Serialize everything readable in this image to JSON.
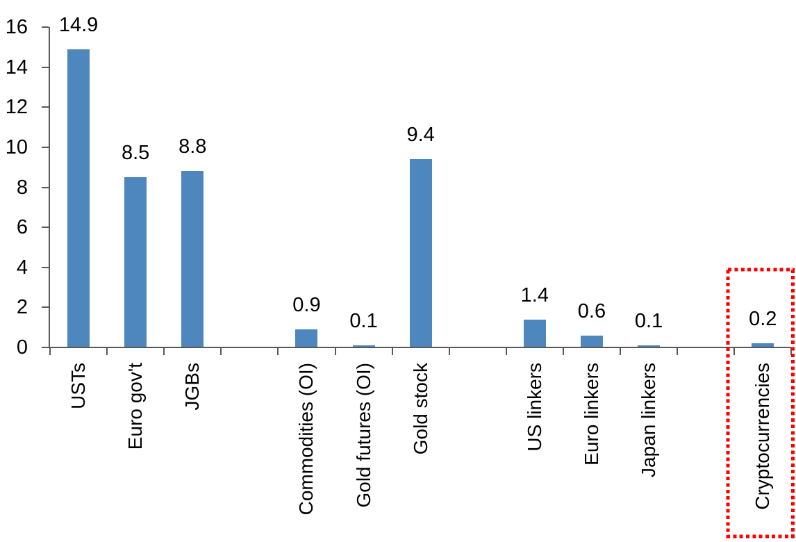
{
  "chart_data": {
    "type": "bar",
    "title": "",
    "categories": [
      "USTs",
      "Euro gov't",
      "JGBs",
      "",
      "Commodities (OI)",
      "Gold futures (OI)",
      "Gold stock",
      "",
      "US linkers",
      "Euro linkers",
      "Japan linkers",
      "",
      "Cryptocurrencies"
    ],
    "values": [
      14.9,
      8.5,
      8.8,
      null,
      0.9,
      0.1,
      9.4,
      null,
      1.4,
      0.6,
      0.1,
      null,
      0.2
    ],
    "value_labels": [
      "14.9",
      "8.5",
      "8.8",
      null,
      "0.9",
      "0.1",
      "9.4",
      null,
      "1.4",
      "0.6",
      "0.1",
      null,
      "0.2"
    ],
    "ytick_labels": [
      "0",
      "2",
      "4",
      "6",
      "8",
      "10",
      "12",
      "14",
      "16"
    ],
    "yticks": [
      0,
      2,
      4,
      6,
      8,
      10,
      12,
      14,
      16
    ],
    "ylim": [
      0,
      16
    ],
    "xlabel": "",
    "ylabel": "",
    "grid": false,
    "legend": false,
    "bar_color": "#4E86BE",
    "axis_color": "#595959",
    "text_color": "#000000",
    "annotation": {
      "shape": "dotted-rectangle",
      "color": "#FF0000",
      "target_category": "Cryptocurrencies"
    }
  }
}
